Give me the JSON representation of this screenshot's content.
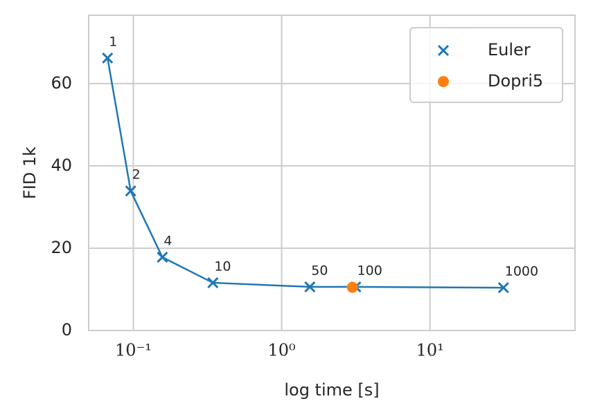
{
  "chart_data": {
    "type": "line",
    "xlabel": "log time [s]",
    "ylabel": "FID 1k",
    "xscale": "log",
    "xlim": [
      0.05,
      95
    ],
    "ylim": [
      0,
      76.6
    ],
    "xticks": [
      {
        "value": 0.1,
        "label": "10⁻¹"
      },
      {
        "value": 1,
        "label": "10⁰"
      },
      {
        "value": 10,
        "label": "10¹"
      }
    ],
    "yticks": [
      0,
      20,
      40,
      60
    ],
    "grid": true,
    "legend": "upper right",
    "series": [
      {
        "name": "Euler",
        "color": "#1f77b4",
        "marker": "x",
        "x": [
          0.067,
          0.096,
          0.157,
          0.344,
          1.55,
          3.16,
          31.3
        ],
        "values": [
          66.2,
          33.9,
          17.8,
          11.6,
          10.6,
          10.6,
          10.4
        ],
        "steps": [
          1,
          2,
          4,
          10,
          50,
          100,
          1000
        ]
      },
      {
        "name": "Dopri5",
        "color": "#ff7f0e",
        "marker": "o",
        "x": [
          3.0
        ],
        "values": [
          10.5
        ]
      }
    ]
  }
}
